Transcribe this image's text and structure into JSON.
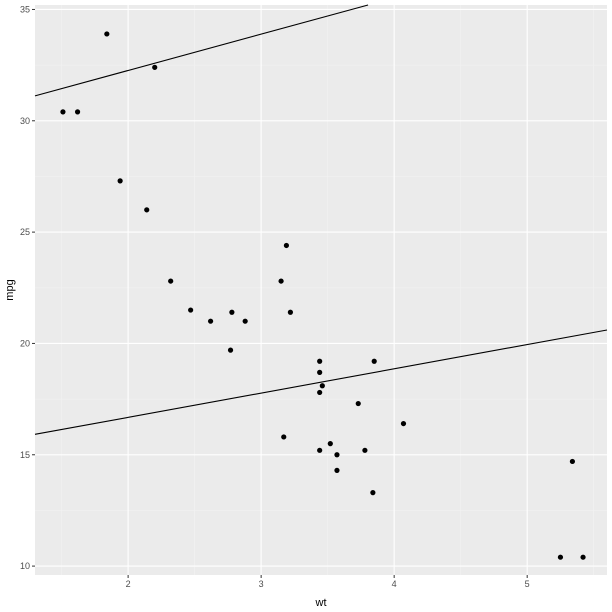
{
  "chart_data": {
    "type": "scatter",
    "title": "",
    "xlabel": "wt",
    "ylabel": "mpg",
    "xlim": [
      1.3,
      5.6
    ],
    "ylim": [
      9.6,
      35.2
    ],
    "grid": true,
    "x_ticks": [
      2,
      3,
      4,
      5
    ],
    "x_tick_labels": [
      "2",
      "3",
      "4",
      "5"
    ],
    "y_ticks": [
      10,
      15,
      20,
      25,
      30,
      35
    ],
    "y_tick_labels": [
      "10",
      "15",
      "20",
      "25",
      "30",
      "35"
    ],
    "points": [
      {
        "x": 1.51,
        "y": 30.4
      },
      {
        "x": 1.62,
        "y": 30.4
      },
      {
        "x": 1.84,
        "y": 33.9
      },
      {
        "x": 1.94,
        "y": 27.3
      },
      {
        "x": 2.14,
        "y": 26.0
      },
      {
        "x": 2.2,
        "y": 32.4
      },
      {
        "x": 2.32,
        "y": 22.8
      },
      {
        "x": 2.47,
        "y": 21.5
      },
      {
        "x": 2.62,
        "y": 21.0
      },
      {
        "x": 2.77,
        "y": 19.7
      },
      {
        "x": 2.78,
        "y": 21.4
      },
      {
        "x": 2.88,
        "y": 21.0
      },
      {
        "x": 3.15,
        "y": 22.8
      },
      {
        "x": 3.17,
        "y": 15.8
      },
      {
        "x": 3.19,
        "y": 24.4
      },
      {
        "x": 3.22,
        "y": 21.4
      },
      {
        "x": 3.44,
        "y": 18.7
      },
      {
        "x": 3.44,
        "y": 19.2
      },
      {
        "x": 3.44,
        "y": 15.2
      },
      {
        "x": 3.44,
        "y": 17.8
      },
      {
        "x": 3.46,
        "y": 18.1
      },
      {
        "x": 3.52,
        "y": 15.5
      },
      {
        "x": 3.57,
        "y": 15.0
      },
      {
        "x": 3.57,
        "y": 14.3
      },
      {
        "x": 3.73,
        "y": 17.3
      },
      {
        "x": 3.78,
        "y": 15.2
      },
      {
        "x": 3.84,
        "y": 13.3
      },
      {
        "x": 3.85,
        "y": 19.2
      },
      {
        "x": 4.07,
        "y": 16.4
      },
      {
        "x": 5.25,
        "y": 10.4
      },
      {
        "x": 5.34,
        "y": 14.7
      },
      {
        "x": 5.42,
        "y": 10.4
      }
    ],
    "lines": [
      {
        "intercept": 29.0,
        "slope": 1.63
      },
      {
        "intercept": 14.5,
        "slope": 1.09
      }
    ],
    "colors": {
      "panel": "#ebebeb",
      "grid_major": "#ffffff",
      "grid_minor": "#f2f2f2",
      "points": "#000000",
      "lines": "#000000"
    }
  }
}
